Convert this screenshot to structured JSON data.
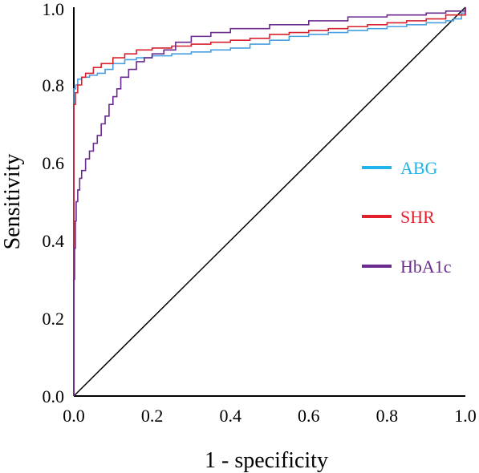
{
  "chart_data": {
    "type": "line",
    "title": "",
    "xlabel": "1 - specificity",
    "ylabel": "Sensitivity",
    "xlim": [
      0,
      1
    ],
    "ylim": [
      0,
      1
    ],
    "xticks": [
      "0.0",
      "0.2",
      "0.4",
      "0.6",
      "0.8",
      "1.0"
    ],
    "yticks": [
      "0.0",
      "0.2",
      "0.4",
      "0.6",
      "0.8",
      "1.0"
    ],
    "grid": false,
    "legend_position": "right",
    "reference_line": {
      "x": [
        0,
        1
      ],
      "y": [
        0,
        1
      ],
      "color": "#000000"
    },
    "series": [
      {
        "name": "ABG",
        "color": "#4a9fe0",
        "legend_color": "#1fb4ec",
        "x": [
          0,
          0.0,
          0.005,
          0.01,
          0.02,
          0.04,
          0.06,
          0.08,
          0.1,
          0.13,
          0.16,
          0.2,
          0.25,
          0.3,
          0.35,
          0.4,
          0.45,
          0.5,
          0.55,
          0.6,
          0.65,
          0.7,
          0.75,
          0.8,
          0.85,
          0.9,
          0.95,
          0.97,
          0.99,
          1.0
        ],
        "y": [
          0,
          0.79,
          0.8,
          0.815,
          0.82,
          0.825,
          0.83,
          0.84,
          0.855,
          0.865,
          0.87,
          0.875,
          0.88,
          0.885,
          0.89,
          0.895,
          0.905,
          0.915,
          0.925,
          0.93,
          0.935,
          0.94,
          0.945,
          0.95,
          0.955,
          0.96,
          0.965,
          0.97,
          0.985,
          1.0
        ]
      },
      {
        "name": "SHR",
        "color": "#d6212f",
        "legend_color": "#e3202c",
        "x": [
          0,
          0.0,
          0.004,
          0.01,
          0.02,
          0.03,
          0.05,
          0.07,
          0.1,
          0.13,
          0.16,
          0.2,
          0.25,
          0.3,
          0.35,
          0.4,
          0.45,
          0.5,
          0.55,
          0.6,
          0.65,
          0.7,
          0.75,
          0.8,
          0.85,
          0.9,
          0.95,
          1.0
        ],
        "y": [
          0,
          0.75,
          0.78,
          0.8,
          0.82,
          0.83,
          0.845,
          0.855,
          0.87,
          0.88,
          0.89,
          0.895,
          0.9,
          0.905,
          0.91,
          0.915,
          0.92,
          0.93,
          0.935,
          0.94,
          0.945,
          0.95,
          0.955,
          0.96,
          0.965,
          0.97,
          0.98,
          1.0
        ]
      },
      {
        "name": "HbA1c",
        "color": "#6a2a8e",
        "legend_color": "#6a2a8e",
        "x": [
          0,
          0.0,
          0.002,
          0.004,
          0.006,
          0.01,
          0.015,
          0.02,
          0.03,
          0.04,
          0.05,
          0.06,
          0.07,
          0.08,
          0.09,
          0.1,
          0.11,
          0.12,
          0.14,
          0.16,
          0.18,
          0.2,
          0.23,
          0.26,
          0.3,
          0.35,
          0.4,
          0.5,
          0.6,
          0.7,
          0.8,
          0.9,
          0.95,
          1.0
        ],
        "y": [
          0,
          0.3,
          0.38,
          0.45,
          0.5,
          0.53,
          0.56,
          0.58,
          0.61,
          0.63,
          0.65,
          0.67,
          0.7,
          0.72,
          0.75,
          0.77,
          0.79,
          0.82,
          0.84,
          0.86,
          0.87,
          0.88,
          0.89,
          0.91,
          0.925,
          0.935,
          0.945,
          0.955,
          0.965,
          0.975,
          0.98,
          0.985,
          0.99,
          1.0
        ]
      }
    ]
  }
}
